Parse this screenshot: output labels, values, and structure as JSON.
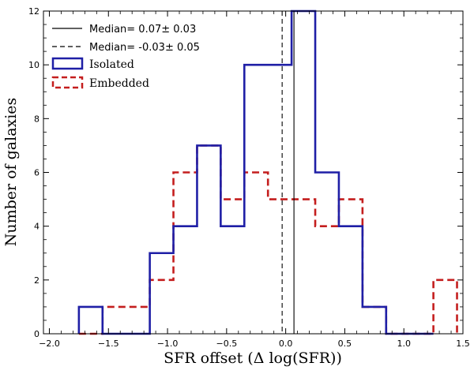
{
  "chart_data": {
    "type": "histogram",
    "xlabel": "SFR offset (Δ log(SFR))",
    "ylabel": "Number of galaxies",
    "xlim": [
      -2.05,
      1.5
    ],
    "ylim": [
      0,
      12
    ],
    "x_ticks": [
      -2.0,
      -1.5,
      -1.0,
      -0.5,
      0.0,
      0.5,
      1.0,
      1.5
    ],
    "x_tick_labels": [
      "−2.0",
      "−1.5",
      "−1.0",
      "−0.5",
      "0.0",
      "0.5",
      "1.0",
      "1.5"
    ],
    "y_ticks": [
      0,
      2,
      4,
      6,
      8,
      10,
      12
    ],
    "y_tick_labels": [
      "0",
      "2",
      "4",
      "6",
      "8",
      "10",
      "12"
    ],
    "series": [
      {
        "name": "Isolated",
        "color": "#1f1fa6",
        "style": "solid",
        "bin_edges": [
          -1.75,
          -1.55,
          -1.35,
          -1.15,
          -0.95,
          -0.75,
          -0.55,
          -0.35,
          -0.15,
          0.05,
          0.25,
          0.45,
          0.65,
          0.85,
          1.05,
          1.25
        ],
        "counts": [
          1,
          0,
          0,
          3,
          4,
          7,
          4,
          10,
          10,
          12,
          6,
          4,
          1,
          0,
          0
        ]
      },
      {
        "name": "Embedded",
        "color": "#c41e1e",
        "style": "dashed",
        "bin_edges": [
          -1.75,
          -1.55,
          -1.35,
          -1.15,
          -0.95,
          -0.75,
          -0.55,
          -0.35,
          -0.15,
          0.05,
          0.25,
          0.45,
          0.65,
          0.85,
          1.05,
          1.25,
          1.45
        ],
        "counts": [
          0,
          1,
          1,
          2,
          6,
          7,
          5,
          6,
          5,
          5,
          4,
          5,
          1,
          0,
          0,
          2
        ]
      }
    ],
    "median_lines": [
      {
        "value": 0.07,
        "style": "solid",
        "label": "Median= 0.07± 0.03"
      },
      {
        "value": -0.03,
        "style": "dashed",
        "label": "Median= -0.03± 0.05"
      }
    ],
    "legend_position": "top-left"
  }
}
